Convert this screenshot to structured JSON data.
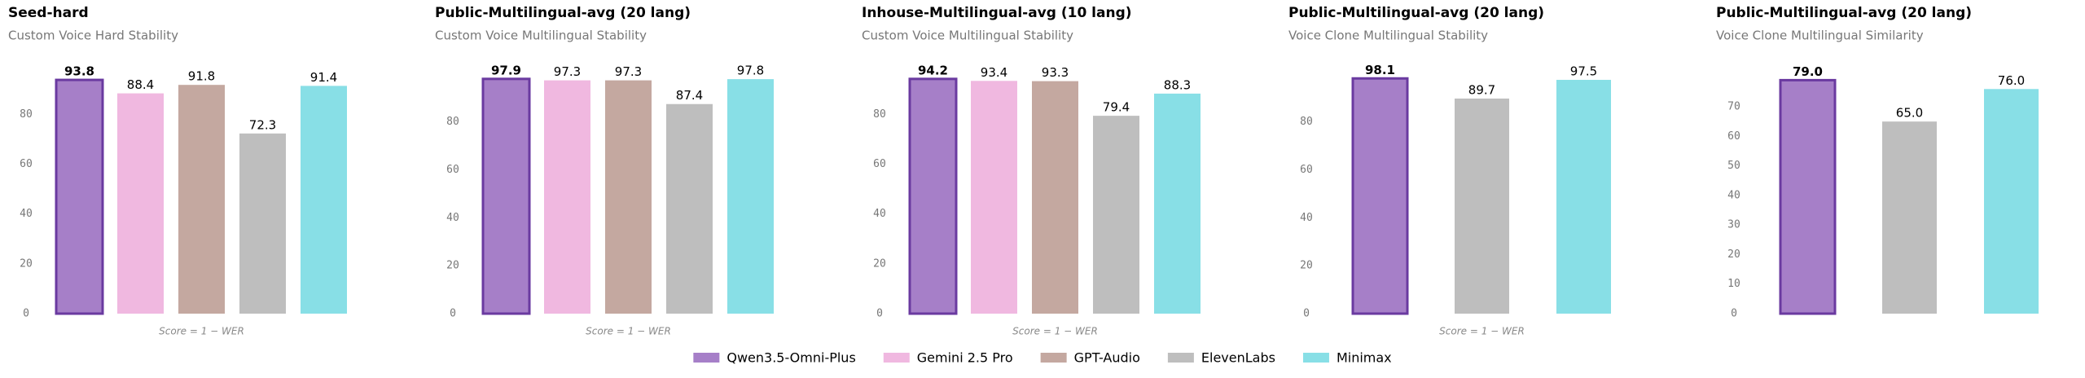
{
  "chart_data": [
    {
      "type": "bar",
      "title": "Seed-hard",
      "subtitle": "Custom Voice Hard Stability",
      "note": "Score = 1 − WER",
      "categories": [
        "Qwen3.5-Omni-Plus",
        "Gemini 2.5 Pro",
        "GPT-Audio",
        "ElevenLabs",
        "Minimax"
      ],
      "values": [
        93.8,
        88.4,
        91.8,
        72.3,
        91.4
      ],
      "colors": [
        "#a67fc8",
        "#f0b8e0",
        "#c4a8a0",
        "#bebebe",
        "#88dfe6"
      ],
      "ylim": [
        0,
        102
      ],
      "yticks": [
        0,
        20,
        40,
        60,
        80
      ]
    },
    {
      "type": "bar",
      "title": "Public-Multilingual-avg (20 lang)",
      "subtitle": "Custom Voice Multilingual Stability",
      "note": "Score = 1 − WER",
      "categories": [
        "Qwen3.5-Omni-Plus",
        "Gemini 2.5 Pro",
        "GPT-Audio",
        "ElevenLabs",
        "Minimax"
      ],
      "values": [
        97.9,
        97.3,
        97.3,
        87.4,
        97.8
      ],
      "colors": [
        "#a67fc8",
        "#f0b8e0",
        "#c4a8a0",
        "#bebebe",
        "#88dfe6"
      ],
      "ylim": [
        0,
        106
      ],
      "yticks": [
        0,
        20,
        40,
        60,
        80
      ]
    },
    {
      "type": "bar",
      "title": "Inhouse-Multilingual-avg (10 lang)",
      "subtitle": "Custom Voice Multilingual Stability",
      "note": "Score = 1 − WER",
      "categories": [
        "Qwen3.5-Omni-Plus",
        "Gemini 2.5 Pro",
        "GPT-Audio",
        "ElevenLabs",
        "Minimax"
      ],
      "values": [
        94.2,
        93.4,
        93.3,
        79.4,
        88.3
      ],
      "colors": [
        "#a67fc8",
        "#f0b8e0",
        "#c4a8a0",
        "#bebebe",
        "#88dfe6"
      ],
      "ylim": [
        0,
        102
      ],
      "yticks": [
        0,
        20,
        40,
        60,
        80
      ]
    },
    {
      "type": "bar",
      "title": "Public-Multilingual-avg (20 lang)",
      "subtitle": "Voice Clone Multilingual Stability",
      "note": "Score = 1 − WER",
      "categories": [
        "Qwen3.5-Omni-Plus",
        "ElevenLabs",
        "Minimax"
      ],
      "values": [
        98.1,
        89.7,
        97.5
      ],
      "colors": [
        "#a67fc8",
        "#bebebe",
        "#88dfe6"
      ],
      "ylim": [
        0,
        106
      ],
      "yticks": [
        0,
        20,
        40,
        60,
        80
      ]
    },
    {
      "type": "bar",
      "title": "Public-Multilingual-avg (20 lang)",
      "subtitle": "Voice Clone Multilingual Similarity",
      "categories": [
        "Qwen3.5-Omni-Plus",
        "ElevenLabs",
        "Minimax"
      ],
      "values": [
        79.0,
        65.0,
        76.0
      ],
      "value_labels": [
        "79.0",
        "65.0",
        "76.0"
      ],
      "colors": [
        "#a67fc8",
        "#bebebe",
        "#88dfe6"
      ],
      "ylim": [
        0,
        86
      ],
      "yticks": [
        0,
        10,
        20,
        30,
        40,
        50,
        60,
        70
      ]
    }
  ],
  "legend": {
    "labels": [
      "Qwen3.5-Omni-Plus",
      "Gemini 2.5 Pro",
      "GPT-Audio",
      "ElevenLabs",
      "Minimax"
    ],
    "colors": [
      "#a67fc8",
      "#f0b8e0",
      "#c4a8a0",
      "#bebebe",
      "#88dfe6"
    ]
  }
}
